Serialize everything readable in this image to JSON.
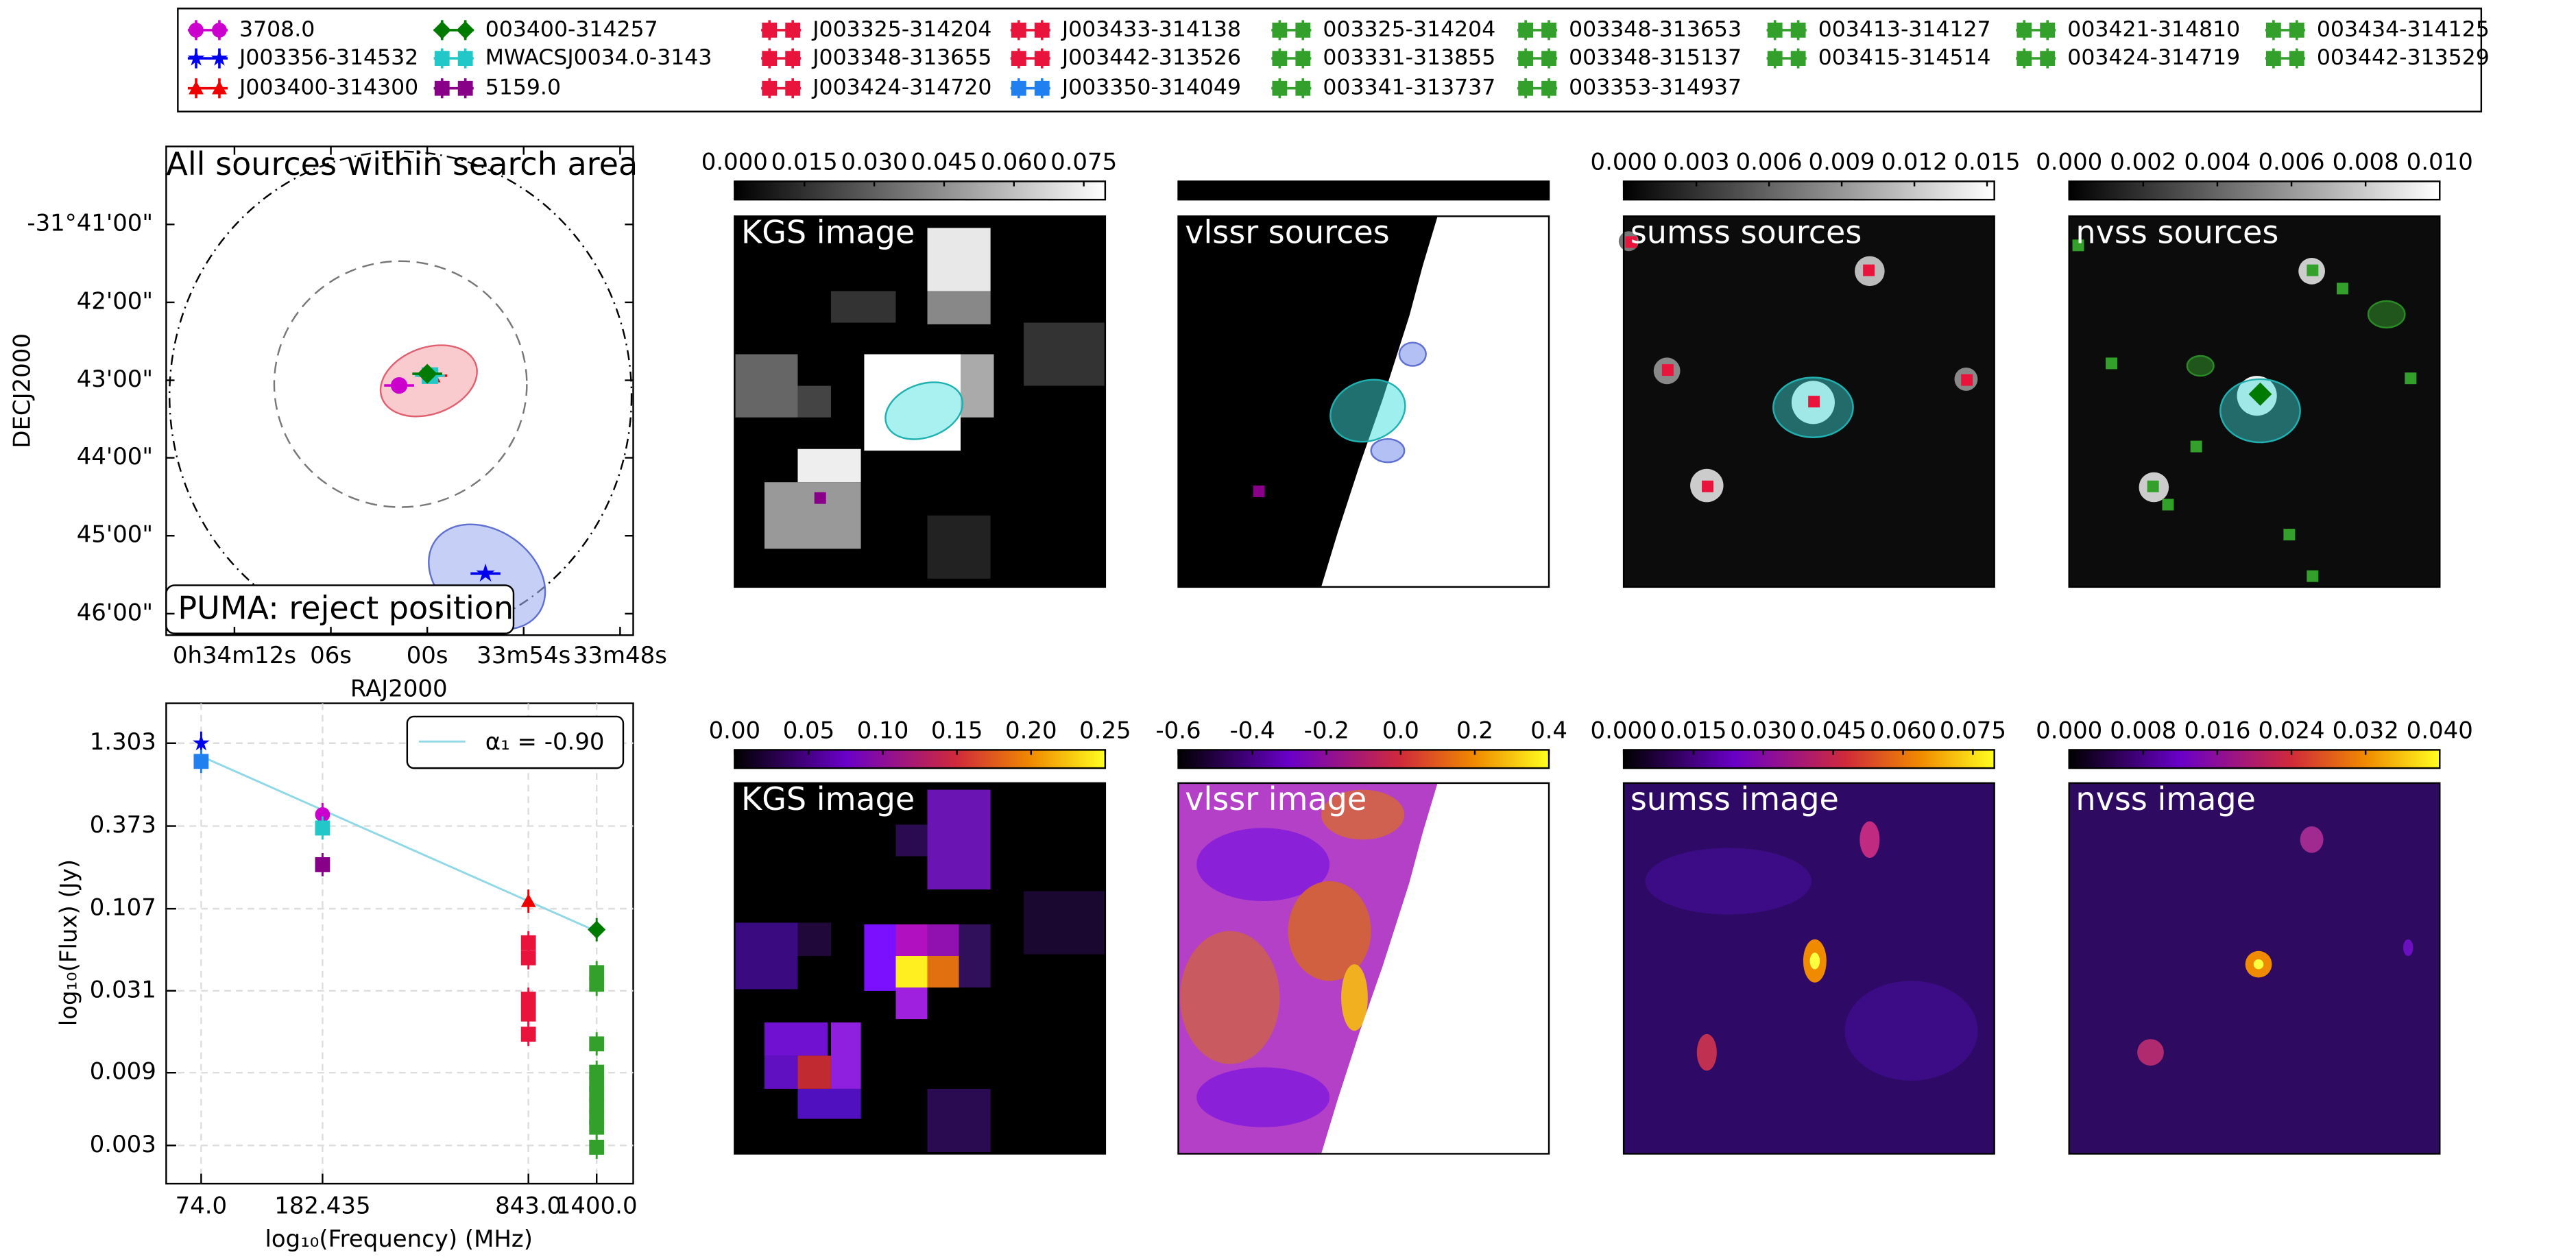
{
  "legend": [
    {
      "name": "3708.0",
      "color": "#cc00cc",
      "marker": "circle"
    },
    {
      "name": "J003356-314532",
      "color": "#0000ee",
      "marker": "star"
    },
    {
      "name": "J003400-314300",
      "color": "#ee0000",
      "marker": "triangle"
    },
    {
      "name": "003400-314257",
      "color": "#007a00",
      "marker": "diamond"
    },
    {
      "name": "MWACSJ0034.0-3143",
      "color": "#22c8c8",
      "marker": "square"
    },
    {
      "name": "5159.0",
      "color": "#880088",
      "marker": "square"
    },
    {
      "name": "J003325-314204",
      "color": "#e8143c",
      "marker": "square"
    },
    {
      "name": "J003348-313655",
      "color": "#e8143c",
      "marker": "square"
    },
    {
      "name": "J003424-314720",
      "color": "#e8143c",
      "marker": "square"
    },
    {
      "name": "J003433-314138",
      "color": "#e8143c",
      "marker": "square"
    },
    {
      "name": "J003442-313526",
      "color": "#e8143c",
      "marker": "square"
    },
    {
      "name": "J003350-314049",
      "color": "#2080f0",
      "marker": "square"
    },
    {
      "name": "003325-314204",
      "color": "#33a02c",
      "marker": "square"
    },
    {
      "name": "003331-313855",
      "color": "#33a02c",
      "marker": "square"
    },
    {
      "name": "003341-313737",
      "color": "#33a02c",
      "marker": "square"
    },
    {
      "name": "003348-313653",
      "color": "#33a02c",
      "marker": "square"
    },
    {
      "name": "003348-315137",
      "color": "#33a02c",
      "marker": "square"
    },
    {
      "name": "003353-314937",
      "color": "#33a02c",
      "marker": "square"
    },
    {
      "name": "003413-314127",
      "color": "#33a02c",
      "marker": "square"
    },
    {
      "name": "003415-314514",
      "color": "#33a02c",
      "marker": "square"
    },
    {
      "name": "003421-314810",
      "color": "#33a02c",
      "marker": "square"
    },
    {
      "name": "003424-314719",
      "color": "#33a02c",
      "marker": "square"
    },
    {
      "name": "003434-314125",
      "color": "#33a02c",
      "marker": "square"
    },
    {
      "name": "003442-313529",
      "color": "#33a02c",
      "marker": "square"
    }
  ],
  "chart_data": [
    {
      "type": "scatter",
      "title": "All sources within search area",
      "annotation": "PUMA: reject position",
      "xlabel": "RAJ2000",
      "ylabel": "DECJ2000",
      "xlim": [
        8.5677,
        8.4466
      ],
      "ylim": [
        -31.7713,
        -31.6666
      ],
      "xticks": [
        {
          "value": 8.55,
          "label": "0h34m12s"
        },
        {
          "value": 8.525,
          "label": "06s"
        },
        {
          "value": 8.5,
          "label": "00s"
        },
        {
          "value": 8.475,
          "label": "33m54s"
        },
        {
          "value": 8.45,
          "label": "33m48s"
        }
      ],
      "yticks": [
        {
          "value": -31.6833,
          "label": "-31°41'00\""
        },
        {
          "value": -31.7,
          "label": "42'00\""
        },
        {
          "value": -31.7167,
          "label": "43'00\""
        },
        {
          "value": -31.7333,
          "label": "44'00\""
        },
        {
          "value": -31.75,
          "label": "45'00\""
        },
        {
          "value": -31.7667,
          "label": "46'00\""
        }
      ],
      "series": [
        {
          "color": "#cc00cc",
          "marker": "circle",
          "x": [
            8.5073
          ],
          "values": [
            -31.7178
          ]
        },
        {
          "color": "#ee0000",
          "marker": "triangle",
          "x": [
            8.4987
          ],
          "values": [
            -31.7157
          ]
        },
        {
          "color": "#22c8c8",
          "marker": "square",
          "x": [
            8.4993
          ],
          "values": [
            -31.7157
          ]
        },
        {
          "color": "#007a00",
          "marker": "diamond",
          "x": [
            8.5
          ],
          "values": [
            -31.7153
          ]
        },
        {
          "color": "#0000ee",
          "marker": "star",
          "x": [
            8.4849
          ],
          "values": [
            -31.7581
          ]
        }
      ]
    },
    {
      "type": "line",
      "xlabel": "log₁₀(Frequency) (MHz)",
      "ylabel": "log₁₀(Flux) (Jy)",
      "log": true,
      "grid": true,
      "xlim": [
        57.06,
        1837
      ],
      "ylim": [
        0.001684,
        2.38
      ],
      "xticks": [
        {
          "value": 74,
          "label": "74.0"
        },
        182.435,
        {
          "value": 843,
          "label": "843.0"
        },
        {
          "value": 1400,
          "label": "1400.0"
        }
      ],
      "yticks": [
        1.303,
        0.373,
        0.107,
        0.031,
        0.009,
        0.003
      ],
      "fit": {
        "label": "α₁ = -0.90",
        "color": "#8fd8e8",
        "x": [
          74,
          1400
        ],
        "values": [
          1.07,
          0.076
        ]
      },
      "series": [
        {
          "color": "#0000ee",
          "marker": "star",
          "x": [
            74
          ],
          "values": [
            1.303
          ]
        },
        {
          "color": "#2080f0",
          "marker": "square",
          "x": [
            74
          ],
          "values": [
            0.99
          ]
        },
        {
          "color": "#cc00cc",
          "marker": "circle",
          "x": [
            182.435
          ],
          "values": [
            0.443
          ]
        },
        {
          "color": "#22c8c8",
          "marker": "square",
          "x": [
            182.435
          ],
          "values": [
            0.362
          ]
        },
        {
          "color": "#880088",
          "marker": "square",
          "x": [
            182.435
          ],
          "values": [
            0.208
          ]
        },
        {
          "color": "#ee0000",
          "marker": "triangle",
          "x": [
            843
          ],
          "values": [
            0.12
          ]
        },
        {
          "color": "#007a00",
          "marker": "diamond",
          "x": [
            1400
          ],
          "values": [
            0.078
          ]
        },
        {
          "color": "#e8143c",
          "marker": "square",
          "x": [
            843,
            843,
            843,
            843,
            843
          ],
          "values": [
            0.064,
            0.051,
            0.0273,
            0.0218,
            0.0161
          ]
        },
        {
          "color": "#33a02c",
          "marker": "square",
          "x": [
            1400,
            1400,
            1400,
            1400,
            1400,
            1400,
            1400,
            1400,
            1400,
            1400
          ],
          "values": [
            0.0408,
            0.0342,
            0.0139,
            0.00906,
            0.00759,
            0.00653,
            0.00548,
            0.00459,
            0.00395,
            0.00292
          ]
        }
      ]
    },
    {
      "type": "image",
      "title": "KGS image",
      "cmap": "gray",
      "clim": [
        0,
        0.0796
      ],
      "cticks": [
        {
          "value": 0,
          "label": "0.000"
        },
        0.015,
        {
          "value": 0.03,
          "label": "0.030"
        },
        0.045,
        {
          "value": 0.06,
          "label": "0.060"
        },
        0.075
      ]
    },
    {
      "type": "image",
      "title": "vlssr sources",
      "cmap": "gray"
    },
    {
      "type": "image",
      "title": "sumss sources",
      "cmap": "gray",
      "clim": [
        0,
        0.0153
      ],
      "cticks": [
        {
          "value": 0,
          "label": "0.000"
        },
        0.003,
        0.006,
        0.009,
        0.012,
        0.015
      ]
    },
    {
      "type": "image",
      "title": "nvss sources",
      "cmap": "gray",
      "clim": [
        0,
        0.01
      ],
      "cticks": [
        {
          "value": 0,
          "label": "0.000"
        },
        0.002,
        0.004,
        0.006,
        0.008,
        {
          "value": 0.01,
          "label": "0.010"
        }
      ]
    },
    {
      "type": "image",
      "title": "KGS image",
      "cmap": "gnuplot",
      "clim": [
        0,
        0.25
      ],
      "cticks": [
        {
          "value": 0,
          "label": "0.00"
        },
        0.05,
        {
          "value": 0.1,
          "label": "0.10"
        },
        0.15,
        {
          "value": 0.2,
          "label": "0.20"
        },
        0.25
      ]
    },
    {
      "type": "image",
      "title": "vlssr image",
      "cmap": "gnuplot",
      "clim": [
        -0.6,
        0.4
      ],
      "cticks": [
        -0.6,
        -0.4,
        -0.2,
        {
          "value": 0,
          "label": "0.0"
        },
        0.2,
        0.4
      ]
    },
    {
      "type": "image",
      "title": "sumss image",
      "cmap": "gnuplot",
      "clim": [
        0,
        0.0796
      ],
      "cticks": [
        {
          "value": 0,
          "label": "0.000"
        },
        0.015,
        {
          "value": 0.03,
          "label": "0.030"
        },
        0.045,
        {
          "value": 0.06,
          "label": "0.060"
        },
        0.075
      ]
    },
    {
      "type": "image",
      "title": "nvss image",
      "cmap": "gnuplot",
      "clim": [
        0,
        0.04
      ],
      "cticks": [
        {
          "value": 0,
          "label": "0.000"
        },
        0.008,
        0.016,
        0.024,
        0.032,
        {
          "value": 0.04,
          "label": "0.040"
        }
      ]
    }
  ]
}
